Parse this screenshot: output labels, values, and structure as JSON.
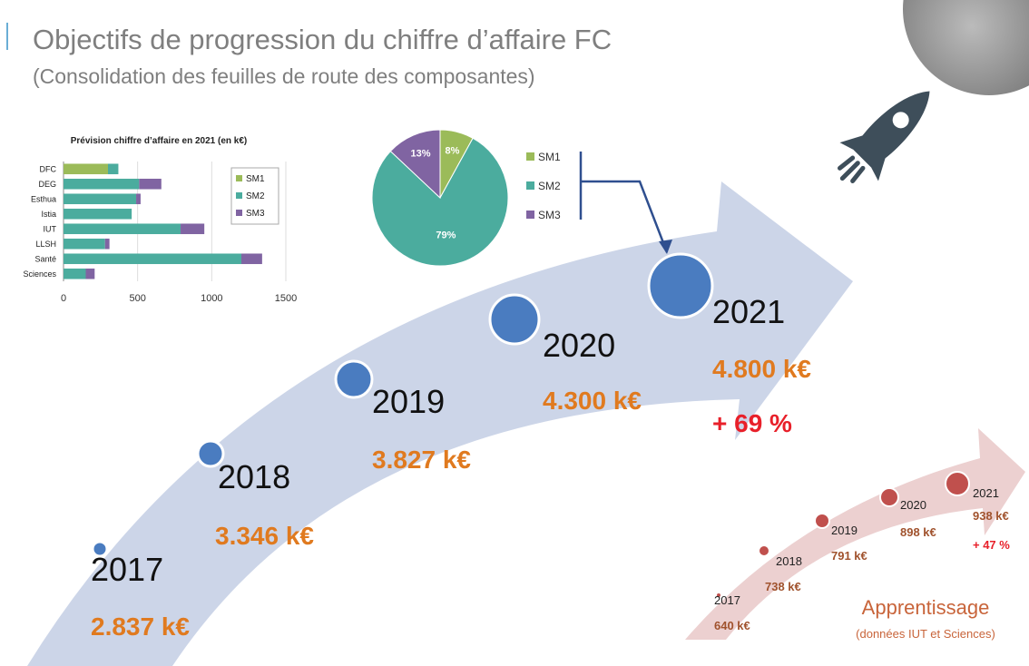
{
  "title": "Objectifs de progression du chiffre d’affaire FC",
  "subtitle": "(Consolidation des feuilles de route des composantes)",
  "timeline": [
    {
      "year": "2017",
      "amount": "2.837 k€"
    },
    {
      "year": "2018",
      "amount": "3.346 k€"
    },
    {
      "year": "2019",
      "amount": "3.827 k€"
    },
    {
      "year": "2020",
      "amount": "4.300 k€"
    },
    {
      "year": "2021",
      "amount": "4.800 k€"
    }
  ],
  "growth": "+ 69 %",
  "apprentissage": {
    "title": "Apprentissage",
    "note": "(données IUT et Sciences)",
    "timeline": [
      {
        "year": "2017",
        "amount": "640 k€"
      },
      {
        "year": "2018",
        "amount": "738 k€"
      },
      {
        "year": "2019",
        "amount": "791 k€"
      },
      {
        "year": "2020",
        "amount": "898 k€"
      },
      {
        "year": "2021",
        "amount": "938 k€"
      }
    ],
    "growth": "+ 47 %"
  },
  "chart_data": [
    {
      "type": "hbar-stacked",
      "title": "Prévision chiffre d’affaire en 2021 (en k€)",
      "categories": [
        "DFC",
        "DEG",
        "Esthua",
        "Istia",
        "IUT",
        "LLSH",
        "Santé",
        "Sciences"
      ],
      "series": [
        {
          "name": "SM1",
          "color": "#9bbb59",
          "values": [
            300,
            0,
            0,
            0,
            0,
            0,
            0,
            0
          ]
        },
        {
          "name": "SM2",
          "color": "#4bac9e",
          "values": [
            70,
            510,
            490,
            460,
            790,
            280,
            1200,
            150
          ]
        },
        {
          "name": "SM3",
          "color": "#8064a2",
          "values": [
            0,
            150,
            30,
            0,
            160,
            30,
            140,
            60
          ]
        }
      ],
      "xlim": [
        0,
        1500
      ],
      "xticks": [
        0,
        500,
        1000,
        1500
      ],
      "grid": true
    },
    {
      "type": "pie",
      "categories": [
        "SM1",
        "SM2",
        "SM3"
      ],
      "values": [
        8,
        79,
        13
      ],
      "value_labels": [
        "8%",
        "79%",
        "13%"
      ],
      "colors": [
        "#9bbb59",
        "#4bac9e",
        "#8064a2"
      ]
    }
  ]
}
